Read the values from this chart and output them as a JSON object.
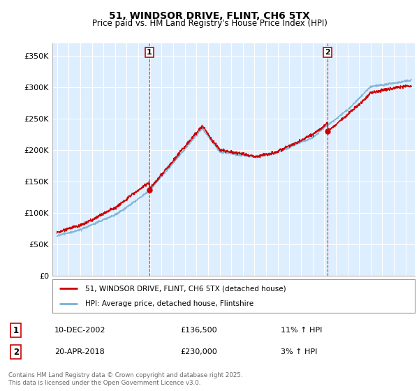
{
  "title": "51, WINDSOR DRIVE, FLINT, CH6 5TX",
  "subtitle": "Price paid vs. HM Land Registry's House Price Index (HPI)",
  "ylabel_ticks": [
    "£0",
    "£50K",
    "£100K",
    "£150K",
    "£200K",
    "£250K",
    "£300K",
    "£350K"
  ],
  "ytick_values": [
    0,
    50000,
    100000,
    150000,
    200000,
    250000,
    300000,
    350000
  ],
  "ylim": [
    0,
    370000
  ],
  "xlim_start": 1994.6,
  "xlim_end": 2025.8,
  "sale1_x": 2002.94,
  "sale1_y": 136500,
  "sale2_x": 2018.3,
  "sale2_y": 230000,
  "legend_line1": "51, WINDSOR DRIVE, FLINT, CH6 5TX (detached house)",
  "legend_line2": "HPI: Average price, detached house, Flintshire",
  "footnote": "Contains HM Land Registry data © Crown copyright and database right 2025.\nThis data is licensed under the Open Government Licence v3.0.",
  "sale1_date_str": "10-DEC-2002",
  "sale1_price_str": "£136,500",
  "sale1_pct_str": "11% ↑ HPI",
  "sale2_date_str": "20-APR-2018",
  "sale2_price_str": "£230,000",
  "sale2_pct_str": "3% ↑ HPI",
  "line_color_red": "#cc0000",
  "line_color_blue": "#7ab0d4",
  "background_plot": "#ddeeff",
  "background_fig": "#ffffff",
  "grid_color": "#ffffff",
  "vline_color": "#cc3333",
  "marker_box_color": "#cc0000"
}
